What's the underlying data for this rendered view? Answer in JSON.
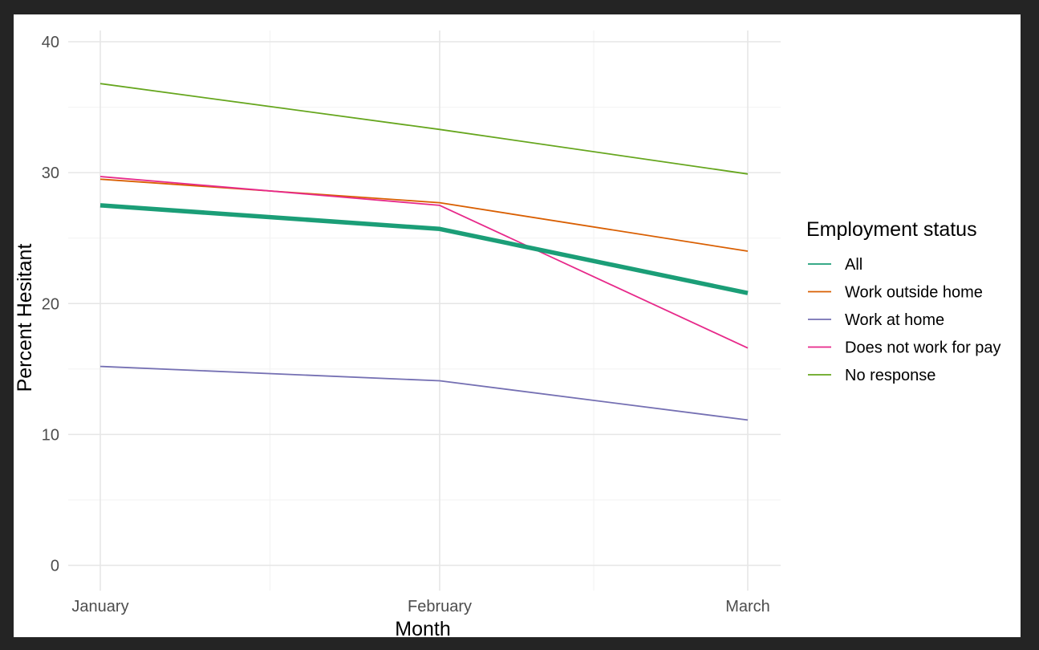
{
  "chart_data": {
    "type": "line",
    "xlabel": "Month",
    "ylabel": "Percent Hesitant",
    "categories": [
      "January",
      "February",
      "March"
    ],
    "ylim": [
      -1.5,
      41
    ],
    "yticks": [
      0,
      10,
      20,
      30,
      40
    ],
    "grid": true,
    "legend": {
      "title": "Employment status",
      "placement": "right"
    },
    "series": [
      {
        "name": "All",
        "values": [
          27.5,
          25.7,
          20.8
        ],
        "color": "#1b9e77",
        "emphasis": true
      },
      {
        "name": "Work outside home",
        "values": [
          29.5,
          27.7,
          24.0
        ],
        "color": "#d95f02"
      },
      {
        "name": "Work at home",
        "values": [
          15.2,
          14.1,
          11.1
        ],
        "color": "#7570b3"
      },
      {
        "name": "Does not work for pay",
        "values": [
          29.7,
          27.5,
          16.6
        ],
        "color": "#e7298a"
      },
      {
        "name": "No response",
        "values": [
          36.8,
          33.3,
          29.9
        ],
        "color": "#66a61e"
      }
    ]
  }
}
